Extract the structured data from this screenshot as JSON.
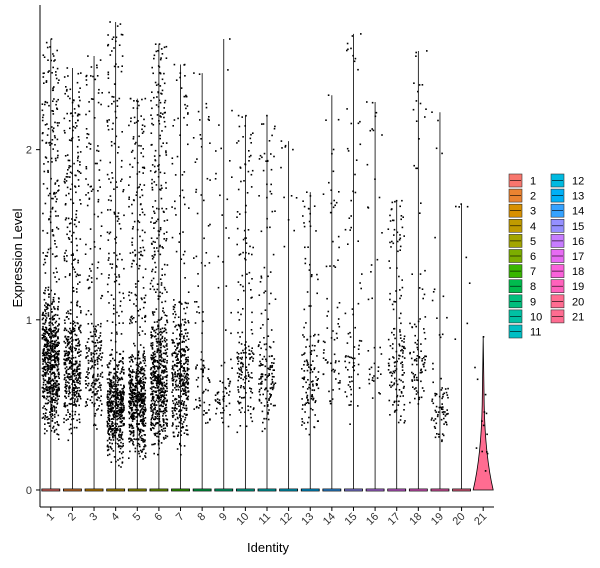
{
  "chart_data": {
    "type": "violin",
    "xlabel": "Identity",
    "ylabel": "Expression Level",
    "ylim": [
      -0.1,
      2.85
    ],
    "yticks": [
      0,
      1,
      2
    ],
    "grid": false,
    "legend_position": "right",
    "categories": [
      "1",
      "2",
      "3",
      "4",
      "5",
      "6",
      "7",
      "8",
      "9",
      "10",
      "11",
      "12",
      "13",
      "14",
      "15",
      "16",
      "17",
      "18",
      "19",
      "20",
      "21"
    ],
    "series": [
      {
        "name": "1",
        "color": "#F8766D",
        "max": 2.65,
        "n_points": 780,
        "cluster_lo": 0.28,
        "cluster_hi": 1.25,
        "high_frac": 0.2
      },
      {
        "name": "2",
        "color": "#EA8331",
        "max": 2.48,
        "n_points": 520,
        "cluster_lo": 0.28,
        "cluster_hi": 1.15,
        "high_frac": 0.28
      },
      {
        "name": "3",
        "color": "#D89000",
        "max": 2.55,
        "n_points": 260,
        "cluster_lo": 0.3,
        "cluster_hi": 1.1,
        "high_frac": 0.3
      },
      {
        "name": "4",
        "color": "#C09B00",
        "max": 2.75,
        "n_points": 620,
        "cluster_lo": 0.13,
        "cluster_hi": 0.85,
        "high_frac": 0.22
      },
      {
        "name": "5",
        "color": "#A3A500",
        "max": 2.3,
        "n_points": 650,
        "cluster_lo": 0.15,
        "cluster_hi": 0.9,
        "high_frac": 0.22
      },
      {
        "name": "6",
        "color": "#7CAE00",
        "max": 2.62,
        "n_points": 680,
        "cluster_lo": 0.2,
        "cluster_hi": 1.1,
        "high_frac": 0.25
      },
      {
        "name": "7",
        "color": "#39B600",
        "max": 2.5,
        "n_points": 420,
        "cluster_lo": 0.2,
        "cluster_hi": 1.15,
        "high_frac": 0.15
      },
      {
        "name": "8",
        "color": "#00BB4E",
        "max": 2.45,
        "n_points": 90,
        "cluster_lo": 0.3,
        "cluster_hi": 0.9,
        "high_frac": 0.4
      },
      {
        "name": "9",
        "color": "#00BF7D",
        "max": 2.65,
        "n_points": 70,
        "cluster_lo": 0.35,
        "cluster_hi": 0.8,
        "high_frac": 0.3
      },
      {
        "name": "10",
        "color": "#00C1A3",
        "max": 2.2,
        "n_points": 180,
        "cluster_lo": 0.3,
        "cluster_hi": 1.1,
        "high_frac": 0.3
      },
      {
        "name": "11",
        "color": "#00BFC4",
        "max": 2.2,
        "n_points": 160,
        "cluster_lo": 0.3,
        "cluster_hi": 1.0,
        "high_frac": 0.3
      },
      {
        "name": "12",
        "color": "#00BAE0",
        "max": 2.05,
        "n_points": 12,
        "cluster_lo": 1.2,
        "cluster_hi": 2.0,
        "high_frac": 0.5
      },
      {
        "name": "13",
        "color": "#00B0F6",
        "max": 1.75,
        "n_points": 140,
        "cluster_lo": 0.3,
        "cluster_hi": 1.0,
        "high_frac": 0.25
      },
      {
        "name": "14",
        "color": "#35A2FF",
        "max": 2.32,
        "n_points": 70,
        "cluster_lo": 0.4,
        "cluster_hi": 1.2,
        "high_frac": 0.4
      },
      {
        "name": "15",
        "color": "#9590FF",
        "max": 2.68,
        "n_points": 80,
        "cluster_lo": 0.35,
        "cluster_hi": 1.0,
        "high_frac": 0.4
      },
      {
        "name": "16",
        "color": "#C77CFF",
        "max": 2.28,
        "n_points": 40,
        "cluster_lo": 0.4,
        "cluster_hi": 1.0,
        "high_frac": 0.4
      },
      {
        "name": "17",
        "color": "#E76BF3",
        "max": 1.7,
        "n_points": 150,
        "cluster_lo": 0.35,
        "cluster_hi": 1.1,
        "high_frac": 0.25
      },
      {
        "name": "18",
        "color": "#FA62DB",
        "max": 2.58,
        "n_points": 100,
        "cluster_lo": 0.4,
        "cluster_hi": 1.1,
        "high_frac": 0.3
      },
      {
        "name": "19",
        "color": "#FF62BC",
        "max": 2.22,
        "n_points": 80,
        "cluster_lo": 0.25,
        "cluster_hi": 0.65,
        "high_frac": 0.2
      },
      {
        "name": "20",
        "color": "#FF6C91",
        "max": 1.68,
        "n_points": 8,
        "cluster_lo": 0.6,
        "cluster_hi": 1.65,
        "high_frac": 0.5
      },
      {
        "name": "21",
        "color": "#FF6C91",
        "max": 0.9,
        "n_points": 14,
        "cluster_lo": 0.0,
        "cluster_hi": 0.85,
        "high_frac": 0.0
      }
    ]
  }
}
